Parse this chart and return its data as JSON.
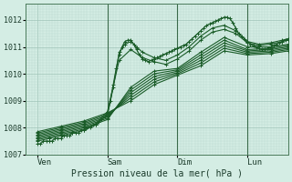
{
  "xlabel": "Pression niveau de la mer( hPa )",
  "bg_color": "#d4ede4",
  "grid_minor_color": "#b8d8cc",
  "grid_major_color": "#a0c4b8",
  "line_color": "#1a5c28",
  "marker": "+",
  "ylim": [
    1007.0,
    1012.6
  ],
  "xlim": [
    0,
    90
  ],
  "y_ticks": [
    1007,
    1008,
    1009,
    1010,
    1011,
    1012
  ],
  "x_tick_positions": [
    4,
    28,
    52,
    76
  ],
  "x_tick_labels": [
    "Ven",
    "Sam",
    "Dim",
    "Lun"
  ],
  "day_vlines": [
    28,
    52,
    76
  ],
  "lines": [
    {
      "comment": "main detailed line - rises sharply around Sam, peaks near Dim",
      "x": [
        4,
        5,
        6,
        7,
        8,
        9,
        10,
        11,
        12,
        13,
        14,
        15,
        16,
        17,
        18,
        19,
        20,
        21,
        22,
        23,
        24,
        25,
        26,
        27,
        28,
        29,
        30,
        31,
        32,
        33,
        34,
        35,
        36,
        37,
        38,
        39,
        40,
        41,
        42,
        43,
        44,
        45,
        46,
        47,
        48,
        49,
        50,
        51,
        52,
        53,
        54,
        55,
        56,
        57,
        58,
        59,
        60,
        61,
        62,
        63,
        64,
        65,
        66,
        67,
        68,
        69,
        70,
        71,
        72,
        73,
        74,
        75,
        76,
        77,
        78,
        79,
        80,
        81,
        82,
        83,
        84,
        85,
        86,
        87,
        88,
        89,
        90
      ],
      "y": [
        1007.4,
        1007.4,
        1007.5,
        1007.5,
        1007.5,
        1007.5,
        1007.6,
        1007.6,
        1007.6,
        1007.7,
        1007.7,
        1007.7,
        1007.8,
        1007.8,
        1007.8,
        1007.9,
        1007.9,
        1008.0,
        1008.0,
        1008.1,
        1008.1,
        1008.2,
        1008.3,
        1008.4,
        1008.5,
        1009.0,
        1009.6,
        1010.2,
        1010.7,
        1011.0,
        1011.2,
        1011.25,
        1011.25,
        1011.1,
        1010.9,
        1010.7,
        1010.55,
        1010.5,
        1010.45,
        1010.5,
        1010.55,
        1010.6,
        1010.65,
        1010.7,
        1010.75,
        1010.8,
        1010.85,
        1010.9,
        1010.95,
        1011.0,
        1011.05,
        1011.1,
        1011.2,
        1011.3,
        1011.4,
        1011.5,
        1011.6,
        1011.7,
        1011.8,
        1011.85,
        1011.9,
        1011.95,
        1012.0,
        1012.05,
        1012.1,
        1012.1,
        1012.05,
        1011.9,
        1011.7,
        1011.5,
        1011.4,
        1011.3,
        1011.2,
        1011.1,
        1011.05,
        1011.0,
        1010.95,
        1010.9,
        1010.9,
        1010.95,
        1011.0,
        1011.05,
        1011.1,
        1011.15,
        1011.2,
        1011.25,
        1011.3
      ]
    },
    {
      "comment": "forecast line 2 - high spike at Sam",
      "x": [
        4,
        8,
        12,
        16,
        20,
        24,
        28,
        30,
        32,
        34,
        36,
        38,
        40,
        44,
        48,
        52,
        56,
        60,
        64,
        68,
        72,
        76,
        80,
        84,
        88,
        90
      ],
      "y": [
        1007.5,
        1007.6,
        1007.7,
        1007.8,
        1007.9,
        1008.1,
        1008.5,
        1009.5,
        1010.8,
        1011.1,
        1011.2,
        1011.0,
        1010.8,
        1010.6,
        1010.5,
        1010.7,
        1011.0,
        1011.4,
        1011.7,
        1011.8,
        1011.6,
        1011.2,
        1011.1,
        1011.15,
        1011.25,
        1011.3
      ]
    },
    {
      "comment": "forecast line 3",
      "x": [
        4,
        8,
        12,
        16,
        20,
        24,
        28,
        32,
        36,
        40,
        44,
        48,
        52,
        56,
        60,
        64,
        68,
        72,
        76,
        80,
        84,
        88,
        90
      ],
      "y": [
        1007.55,
        1007.65,
        1007.75,
        1007.85,
        1007.95,
        1008.15,
        1008.6,
        1010.5,
        1010.9,
        1010.6,
        1010.45,
        1010.35,
        1010.55,
        1010.85,
        1011.25,
        1011.55,
        1011.65,
        1011.5,
        1011.15,
        1011.05,
        1011.1,
        1011.2,
        1011.25
      ]
    },
    {
      "comment": "straight-ish forecast line 4",
      "x": [
        4,
        12,
        20,
        28,
        36,
        44,
        52,
        60,
        68,
        76,
        84,
        90
      ],
      "y": [
        1007.6,
        1007.8,
        1008.0,
        1008.3,
        1009.5,
        1010.1,
        1010.2,
        1010.8,
        1011.35,
        1011.0,
        1011.0,
        1011.1
      ]
    },
    {
      "comment": "straight forecast line 5",
      "x": [
        4,
        12,
        20,
        28,
        36,
        44,
        52,
        60,
        68,
        76,
        84,
        90
      ],
      "y": [
        1007.65,
        1007.85,
        1008.05,
        1008.35,
        1009.4,
        1010.0,
        1010.15,
        1010.7,
        1011.25,
        1010.9,
        1010.95,
        1011.05
      ]
    },
    {
      "comment": "straight forecast line 6",
      "x": [
        4,
        12,
        20,
        28,
        36,
        44,
        52,
        60,
        68,
        76,
        84,
        90
      ],
      "y": [
        1007.7,
        1007.9,
        1008.1,
        1008.4,
        1009.3,
        1009.9,
        1010.1,
        1010.6,
        1011.15,
        1010.85,
        1010.9,
        1011.0
      ]
    },
    {
      "comment": "straight forecast line 7",
      "x": [
        4,
        12,
        20,
        28,
        36,
        44,
        52,
        60,
        68,
        76,
        84,
        90
      ],
      "y": [
        1007.75,
        1007.95,
        1008.15,
        1008.45,
        1009.2,
        1009.8,
        1010.05,
        1010.5,
        1011.05,
        1010.8,
        1010.85,
        1010.95
      ]
    },
    {
      "comment": "straight forecast line 8",
      "x": [
        4,
        12,
        20,
        28,
        36,
        44,
        52,
        60,
        68,
        76,
        84,
        90
      ],
      "y": [
        1007.8,
        1008.0,
        1008.2,
        1008.5,
        1009.1,
        1009.7,
        1010.0,
        1010.4,
        1010.95,
        1010.75,
        1010.8,
        1010.9
      ]
    },
    {
      "comment": "straight forecast line 9",
      "x": [
        4,
        12,
        20,
        28,
        36,
        44,
        52,
        60,
        68,
        76,
        84,
        90
      ],
      "y": [
        1007.85,
        1008.05,
        1008.25,
        1008.55,
        1009.0,
        1009.6,
        1009.95,
        1010.3,
        1010.85,
        1010.7,
        1010.75,
        1010.85
      ]
    }
  ]
}
